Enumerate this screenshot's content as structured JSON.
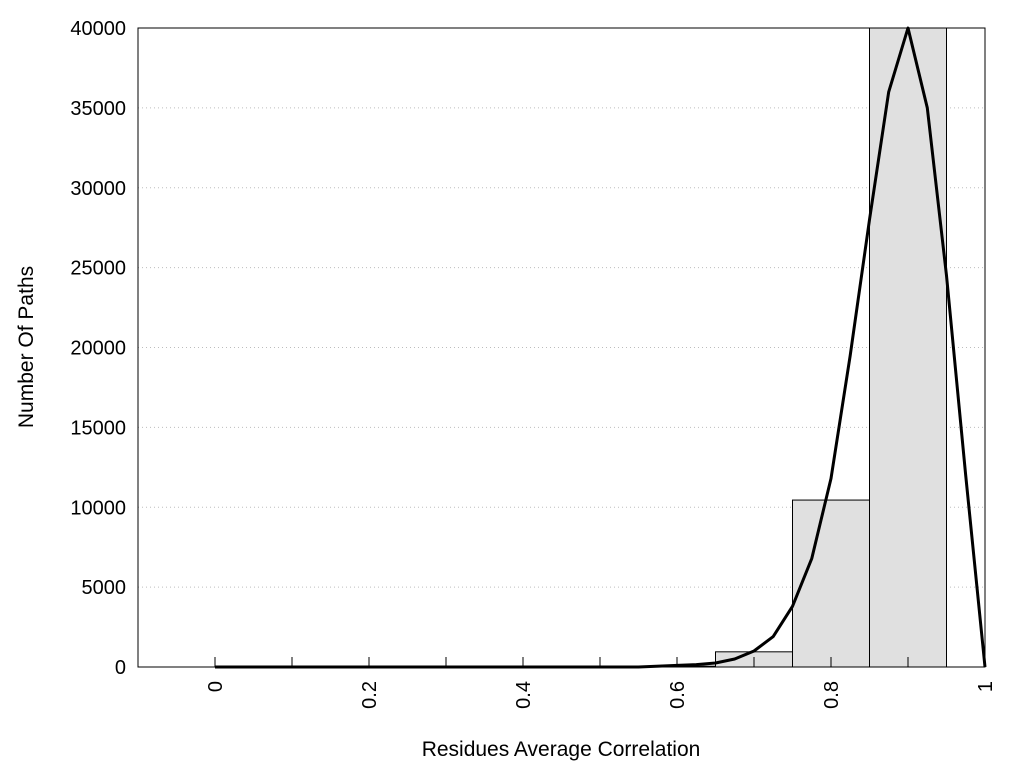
{
  "chart_data": {
    "type": "bar",
    "xlabel": "Residues Average Correlation",
    "ylabel": "Number Of Paths",
    "xlim": [
      -0.1,
      1.0
    ],
    "ylim": [
      0,
      40000
    ],
    "grid": "horizontal dotted",
    "x_ticks": [
      {
        "value": 0,
        "label": "0"
      },
      {
        "value": 0.2,
        "label": "0.2"
      },
      {
        "value": 0.4,
        "label": "0.4"
      },
      {
        "value": 0.6,
        "label": "0.6"
      },
      {
        "value": 0.8,
        "label": "0.8"
      },
      {
        "value": 1.0,
        "label": "1"
      }
    ],
    "x_minor_ticks": [
      0.1,
      0.3,
      0.5,
      0.7,
      0.9
    ],
    "y_ticks": [
      {
        "value": 0,
        "label": "0"
      },
      {
        "value": 5000,
        "label": "5000"
      },
      {
        "value": 10000,
        "label": "10000"
      },
      {
        "value": 15000,
        "label": "15000"
      },
      {
        "value": 20000,
        "label": "20000"
      },
      {
        "value": 25000,
        "label": "25000"
      },
      {
        "value": 30000,
        "label": "30000"
      },
      {
        "value": 35000,
        "label": "35000"
      },
      {
        "value": 40000,
        "label": "40000"
      }
    ],
    "bins": [
      {
        "x0": -0.05,
        "x1": 0.05,
        "value": 0
      },
      {
        "x0": 0.05,
        "x1": 0.15,
        "value": 0
      },
      {
        "x0": 0.15,
        "x1": 0.25,
        "value": 0
      },
      {
        "x0": 0.25,
        "x1": 0.35,
        "value": 0
      },
      {
        "x0": 0.35,
        "x1": 0.45,
        "value": 0
      },
      {
        "x0": 0.45,
        "x1": 0.55,
        "value": 0
      },
      {
        "x0": 0.55,
        "x1": 0.65,
        "value": 50
      },
      {
        "x0": 0.65,
        "x1": 0.75,
        "value": 950
      },
      {
        "x0": 0.75,
        "x1": 0.85,
        "value": 10450
      },
      {
        "x0": 0.85,
        "x1": 0.95,
        "value": 40000
      }
    ],
    "bar_color": "#e0e0e0",
    "fit_curve": {
      "color": "#000000",
      "points": [
        [
          0.0,
          0
        ],
        [
          0.55,
          0
        ],
        [
          0.6,
          100
        ],
        [
          0.625,
          150
        ],
        [
          0.65,
          250
        ],
        [
          0.675,
          500
        ],
        [
          0.7,
          1000
        ],
        [
          0.725,
          1900
        ],
        [
          0.75,
          3800
        ],
        [
          0.775,
          6800
        ],
        [
          0.8,
          11800
        ],
        [
          0.825,
          19500
        ],
        [
          0.85,
          28000
        ],
        [
          0.875,
          36000
        ],
        [
          0.9,
          40000
        ],
        [
          0.925,
          35000
        ],
        [
          0.95,
          24500
        ],
        [
          0.975,
          12000
        ],
        [
          1.0,
          0
        ]
      ]
    }
  }
}
